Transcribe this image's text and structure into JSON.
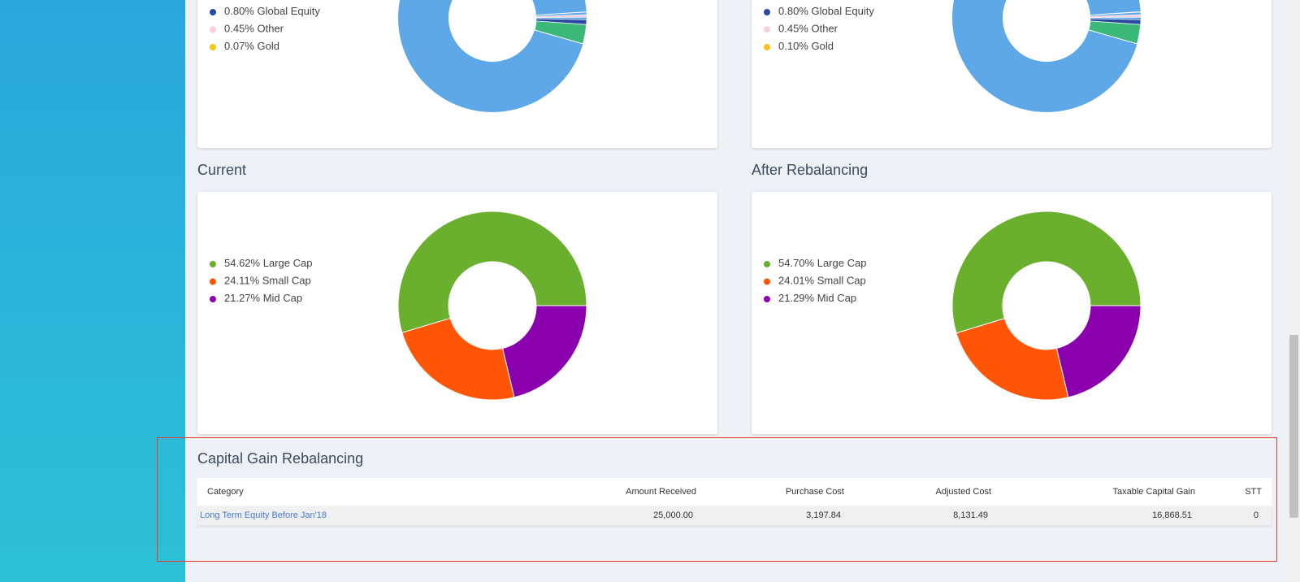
{
  "chart_data": [
    {
      "type": "pie",
      "categories": [
        "Global Equity",
        "Other",
        "Gold"
      ],
      "values": [
        0.8,
        0.45,
        0.07
      ],
      "value_labels": [
        "0.80%",
        "0.45%",
        "0.07%"
      ],
      "colors": [
        "#2a4aa0",
        "#f7cfe0",
        "#f5c518"
      ]
    },
    {
      "type": "pie",
      "categories": [
        "Global Equity",
        "Other",
        "Gold"
      ],
      "values": [
        0.8,
        0.45,
        0.1
      ],
      "value_labels": [
        "0.80%",
        "0.45%",
        "0.10%"
      ],
      "colors": [
        "#2a4aa0",
        "#f7cfe0",
        "#f5c518"
      ]
    },
    {
      "type": "pie",
      "title": "Current",
      "categories": [
        "Large Cap",
        "Small Cap",
        "Mid Cap"
      ],
      "values": [
        54.62,
        24.11,
        21.27
      ],
      "value_labels": [
        "54.62%",
        "24.11%",
        "21.27%"
      ],
      "colors": [
        "#6aaf2e",
        "#ff5506",
        "#8a00ad"
      ]
    },
    {
      "type": "pie",
      "title": "After Rebalancing",
      "categories": [
        "Large Cap",
        "Small Cap",
        "Mid Cap"
      ],
      "values": [
        54.7,
        24.01,
        21.29
      ],
      "value_labels": [
        "54.70%",
        "24.01%",
        "21.29%"
      ],
      "colors": [
        "#6aaf2e",
        "#ff5506",
        "#8a00ad"
      ]
    }
  ],
  "table": {
    "title": "Capital Gain Rebalancing",
    "headers": [
      "Category",
      "Amount Received",
      "Purchase Cost",
      "Adjusted Cost",
      "Taxable Capital Gain",
      "STT"
    ],
    "rows": [
      [
        "Long Term Equity Before Jan'18",
        "25,000.00",
        "3,197.84",
        "8,131.49",
        "16,868.51",
        "0"
      ]
    ]
  }
}
